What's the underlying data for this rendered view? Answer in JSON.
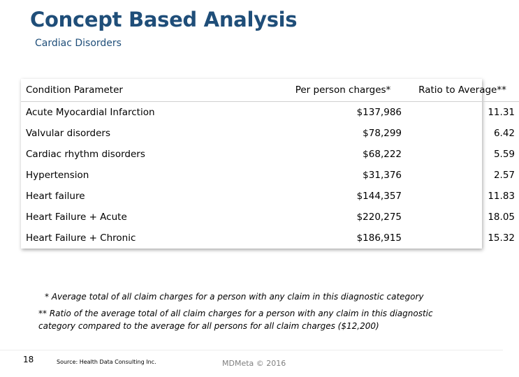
{
  "slide": {
    "title": "Concept Based Analysis",
    "subtitle": "Cardiac Disorders"
  },
  "table": {
    "headers": [
      "Condition Parameter",
      "Per person charges*",
      "Ratio to Average**"
    ],
    "rows": [
      {
        "condition": "Acute Myocardial Infarction",
        "charges": "$137,986",
        "ratio": "11.31"
      },
      {
        "condition": "Valvular disorders",
        "charges": "$78,299",
        "ratio": "6.42"
      },
      {
        "condition": "Cardiac rhythm disorders",
        "charges": "$68,222",
        "ratio": "5.59"
      },
      {
        "condition": "Hypertension",
        "charges": "$31,376",
        "ratio": "2.57"
      },
      {
        "condition": "Heart failure",
        "charges": "$144,357",
        "ratio": "11.83"
      },
      {
        "condition": "Heart Failure + Acute",
        "charges": "$220,275",
        "ratio": "18.05"
      },
      {
        "condition": "Heart Failure + Chronic",
        "charges": "$186,915",
        "ratio": "15.32"
      }
    ]
  },
  "footnotes": {
    "note1": "* Average total of all claim charges for a person with any claim in this diagnostic category",
    "note2": "** Ratio of the average total of all claim charges for a person with any claim in this diagnostic category compared to the average for all persons for all claim charges ($12,200)"
  },
  "footer": {
    "page_number": "18",
    "source": "Source: Health Data Consulting Inc.",
    "copyright": "MDMeta © 2016"
  }
}
